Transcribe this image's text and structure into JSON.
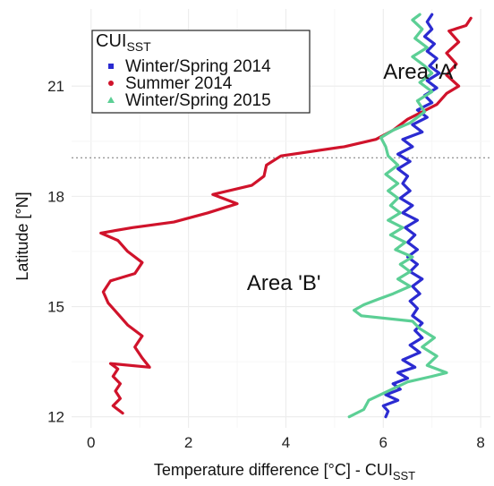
{
  "chart_data": {
    "type": "line",
    "xlabel": "Temperature difference [°C] - CUI",
    "xlabel_sub": "SST",
    "ylabel": "Latitude [°N]",
    "xlim": [
      -0.4,
      8.2
    ],
    "ylim": [
      11.7,
      23.1
    ],
    "xticks": [
      0,
      2,
      4,
      6,
      8
    ],
    "yticks": [
      12,
      15,
      18,
      21
    ],
    "grid": true,
    "reference_line": {
      "y": 19.05,
      "style": "dotted"
    },
    "legend": {
      "title": "CUI",
      "title_sub": "SST",
      "placement": "top-left"
    },
    "annotations": [
      {
        "text": "Area 'A'",
        "x": 6.0,
        "y": 21.2
      },
      {
        "text": "Area 'B'",
        "x": 3.2,
        "y": 15.45
      }
    ],
    "series": [
      {
        "name": "Winter/Spring 2014",
        "color": "#2b2bd1",
        "marker": "square",
        "points": [
          [
            6.05,
            12.0
          ],
          [
            6.1,
            12.15
          ],
          [
            6.0,
            12.3
          ],
          [
            6.3,
            12.45
          ],
          [
            6.05,
            12.6
          ],
          [
            6.35,
            12.75
          ],
          [
            6.2,
            12.9
          ],
          [
            6.5,
            13.05
          ],
          [
            6.3,
            13.2
          ],
          [
            6.65,
            13.35
          ],
          [
            6.4,
            13.55
          ],
          [
            6.75,
            13.75
          ],
          [
            6.55,
            13.95
          ],
          [
            6.8,
            14.15
          ],
          [
            6.65,
            14.35
          ],
          [
            6.8,
            14.55
          ],
          [
            6.6,
            14.75
          ],
          [
            6.7,
            14.95
          ],
          [
            6.55,
            15.15
          ],
          [
            6.75,
            15.35
          ],
          [
            6.6,
            15.55
          ],
          [
            6.8,
            15.75
          ],
          [
            6.55,
            15.95
          ],
          [
            6.7,
            16.15
          ],
          [
            6.5,
            16.35
          ],
          [
            6.7,
            16.55
          ],
          [
            6.5,
            16.75
          ],
          [
            6.65,
            16.95
          ],
          [
            6.45,
            17.15
          ],
          [
            6.7,
            17.35
          ],
          [
            6.4,
            17.55
          ],
          [
            6.6,
            17.75
          ],
          [
            6.35,
            17.95
          ],
          [
            6.55,
            18.15
          ],
          [
            6.4,
            18.35
          ],
          [
            6.5,
            18.55
          ],
          [
            6.3,
            18.75
          ],
          [
            6.55,
            18.95
          ],
          [
            6.3,
            19.15
          ],
          [
            6.6,
            19.35
          ],
          [
            6.4,
            19.55
          ],
          [
            6.8,
            19.75
          ],
          [
            6.6,
            19.95
          ],
          [
            6.9,
            20.15
          ],
          [
            6.7,
            20.35
          ],
          [
            7.0,
            20.55
          ],
          [
            6.85,
            20.75
          ],
          [
            7.1,
            20.95
          ],
          [
            6.9,
            21.15
          ],
          [
            7.15,
            21.35
          ],
          [
            6.95,
            21.55
          ],
          [
            7.1,
            21.75
          ],
          [
            6.9,
            21.95
          ],
          [
            7.05,
            22.15
          ],
          [
            6.85,
            22.35
          ],
          [
            7.0,
            22.55
          ],
          [
            6.9,
            22.75
          ],
          [
            7.0,
            22.95
          ]
        ]
      },
      {
        "name": "Summer 2014",
        "color": "#d0132b",
        "marker": "circle",
        "points": [
          [
            0.65,
            12.1
          ],
          [
            0.45,
            12.3
          ],
          [
            0.6,
            12.5
          ],
          [
            0.5,
            12.7
          ],
          [
            0.6,
            12.9
          ],
          [
            0.45,
            13.1
          ],
          [
            0.55,
            13.3
          ],
          [
            0.4,
            13.45
          ],
          [
            1.2,
            13.35
          ],
          [
            1.05,
            13.6
          ],
          [
            0.9,
            13.9
          ],
          [
            1.05,
            14.2
          ],
          [
            0.75,
            14.5
          ],
          [
            0.55,
            14.8
          ],
          [
            0.35,
            15.1
          ],
          [
            0.25,
            15.4
          ],
          [
            0.4,
            15.7
          ],
          [
            0.9,
            15.9
          ],
          [
            1.05,
            16.2
          ],
          [
            0.75,
            16.5
          ],
          [
            0.55,
            16.8
          ],
          [
            0.2,
            17.0
          ],
          [
            0.85,
            17.15
          ],
          [
            1.7,
            17.3
          ],
          [
            2.4,
            17.55
          ],
          [
            3.0,
            17.8
          ],
          [
            2.5,
            18.05
          ],
          [
            3.3,
            18.3
          ],
          [
            3.55,
            18.55
          ],
          [
            3.6,
            18.85
          ],
          [
            3.9,
            19.1
          ],
          [
            5.2,
            19.35
          ],
          [
            5.85,
            19.55
          ],
          [
            6.2,
            19.8
          ],
          [
            6.5,
            20.1
          ],
          [
            7.1,
            20.5
          ],
          [
            7.3,
            20.8
          ],
          [
            7.55,
            21.0
          ],
          [
            7.3,
            21.3
          ],
          [
            7.5,
            21.6
          ],
          [
            7.3,
            21.9
          ],
          [
            7.55,
            22.2
          ],
          [
            7.35,
            22.5
          ],
          [
            7.7,
            22.65
          ],
          [
            7.8,
            22.85
          ]
        ]
      },
      {
        "name": "Winter/Spring 2015",
        "color": "#5ccf95",
        "marker": "triangle",
        "points": [
          [
            5.3,
            12.0
          ],
          [
            5.6,
            12.2
          ],
          [
            5.7,
            12.45
          ],
          [
            6.1,
            12.7
          ],
          [
            6.5,
            12.95
          ],
          [
            7.0,
            13.1
          ],
          [
            7.3,
            13.2
          ],
          [
            6.9,
            13.4
          ],
          [
            7.1,
            13.65
          ],
          [
            6.8,
            13.9
          ],
          [
            7.05,
            14.15
          ],
          [
            6.75,
            14.4
          ],
          [
            6.6,
            14.6
          ],
          [
            5.55,
            14.75
          ],
          [
            5.4,
            14.9
          ],
          [
            5.6,
            15.05
          ],
          [
            5.9,
            15.2
          ],
          [
            6.2,
            15.35
          ],
          [
            6.55,
            15.55
          ],
          [
            6.3,
            15.75
          ],
          [
            6.55,
            15.95
          ],
          [
            6.35,
            16.15
          ],
          [
            6.6,
            16.35
          ],
          [
            6.25,
            16.55
          ],
          [
            6.45,
            16.75
          ],
          [
            6.15,
            16.95
          ],
          [
            6.4,
            17.15
          ],
          [
            6.1,
            17.35
          ],
          [
            6.35,
            17.55
          ],
          [
            6.15,
            17.75
          ],
          [
            6.3,
            17.95
          ],
          [
            6.1,
            18.15
          ],
          [
            6.3,
            18.35
          ],
          [
            6.05,
            18.6
          ],
          [
            6.3,
            18.85
          ],
          [
            6.1,
            19.1
          ],
          [
            6.05,
            19.35
          ],
          [
            5.95,
            19.6
          ],
          [
            6.2,
            19.8
          ],
          [
            6.55,
            20.0
          ],
          [
            6.85,
            20.3
          ],
          [
            6.7,
            20.6
          ],
          [
            7.0,
            20.85
          ],
          [
            6.75,
            21.1
          ],
          [
            7.0,
            21.35
          ],
          [
            6.85,
            21.55
          ],
          [
            6.6,
            21.8
          ],
          [
            6.9,
            22.05
          ],
          [
            6.65,
            22.3
          ],
          [
            6.8,
            22.55
          ],
          [
            6.6,
            22.8
          ],
          [
            6.75,
            22.95
          ]
        ]
      }
    ]
  }
}
